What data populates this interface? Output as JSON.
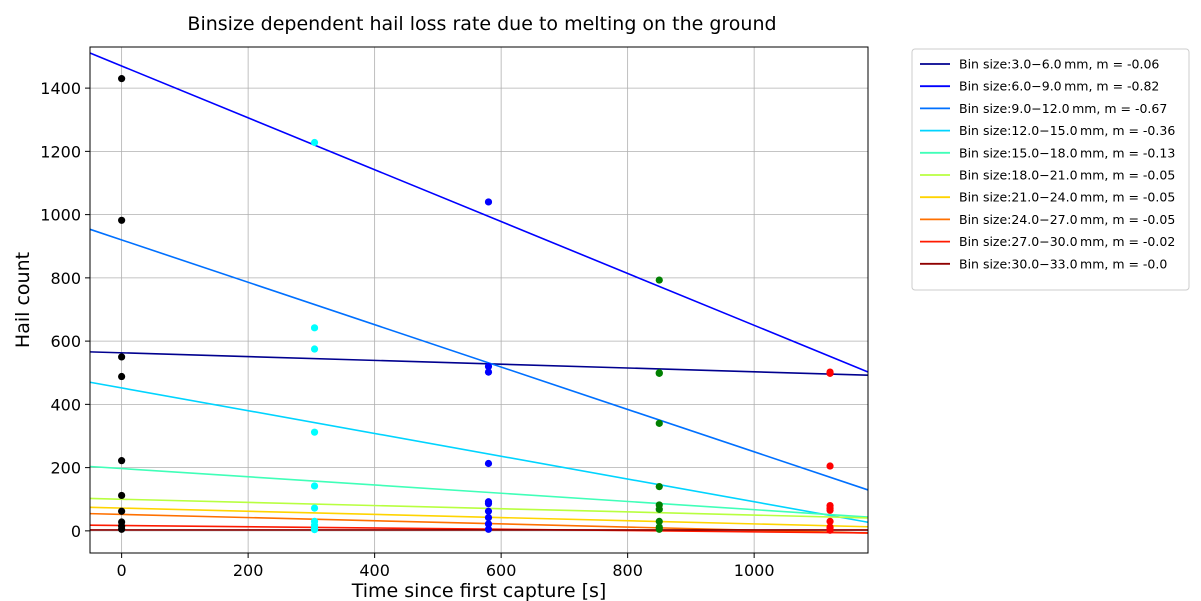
{
  "chart_data": {
    "type": "scatter",
    "title": "Binsize dependent hail loss rate due to melting on the ground",
    "xlabel": "Time since first capture [s]",
    "ylabel": "Hail count",
    "xlim": [
      -50,
      1180
    ],
    "ylim": [
      -70,
      1530
    ],
    "xticks": [
      0,
      200,
      400,
      600,
      800,
      1000
    ],
    "yticks": [
      0,
      200,
      400,
      600,
      800,
      1000,
      1200,
      1400
    ],
    "grid": true,
    "legend_position": "outside-top-right",
    "fit_lines": [
      {
        "name": "Bin size:3.0−6.0 mm, m = -0.06",
        "color": "#00008f",
        "slope": -0.06,
        "intercept": 563
      },
      {
        "name": "Bin size:6.0−9.0 mm, m = -0.82",
        "color": "#0000ff",
        "slope": -0.82,
        "intercept": 1470
      },
      {
        "name": "Bin size:9.0−12.0 mm, m = -0.67",
        "color": "#0070ff",
        "slope": -0.67,
        "intercept": 920
      },
      {
        "name": "Bin size:12.0−15.0 mm, m = -0.36",
        "color": "#00d4ff",
        "slope": -0.36,
        "intercept": 452
      },
      {
        "name": "Bin size:15.0−18.0 mm, m = -0.13",
        "color": "#40ffb8",
        "slope": -0.13,
        "intercept": 197
      },
      {
        "name": "Bin size:18.0−21.0 mm, m = -0.05",
        "color": "#b8ff40",
        "slope": -0.05,
        "intercept": 100
      },
      {
        "name": "Bin size:21.0−24.0 mm, m = -0.05",
        "color": "#ffd400",
        "slope": -0.05,
        "intercept": 72
      },
      {
        "name": "Bin size:24.0−27.0 mm, m = -0.05",
        "color": "#ff7000",
        "slope": -0.05,
        "intercept": 52
      },
      {
        "name": "Bin size:27.0−30.0 mm, m = -0.02",
        "color": "#ff1a00",
        "slope": -0.02,
        "intercept": 17
      },
      {
        "name": "Bin size:30.0−33.0 mm, m = -0.0",
        "color": "#8f0000",
        "slope": 0.0,
        "intercept": 3
      }
    ],
    "scatter_groups": [
      {
        "x": 0,
        "color": "#000000",
        "values": [
          1430,
          982,
          550,
          488,
          222,
          112,
          62,
          28,
          15,
          5
        ]
      },
      {
        "x": 305,
        "color": "#00ffff",
        "values": [
          1228,
          642,
          575,
          312,
          142,
          72,
          30,
          18,
          8,
          4
        ]
      },
      {
        "x": 580,
        "color": "#0000ff",
        "values": [
          1040,
          520,
          502,
          213,
          92,
          86,
          62,
          42,
          22,
          5
        ]
      },
      {
        "x": 850,
        "color": "#008000",
        "values": [
          793,
          500,
          498,
          340,
          140,
          82,
          68,
          30,
          12,
          5
        ]
      },
      {
        "x": 1120,
        "color": "#ff0000",
        "values": [
          502,
          498,
          205,
          80,
          72,
          65,
          30,
          12,
          5,
          2
        ]
      }
    ]
  }
}
